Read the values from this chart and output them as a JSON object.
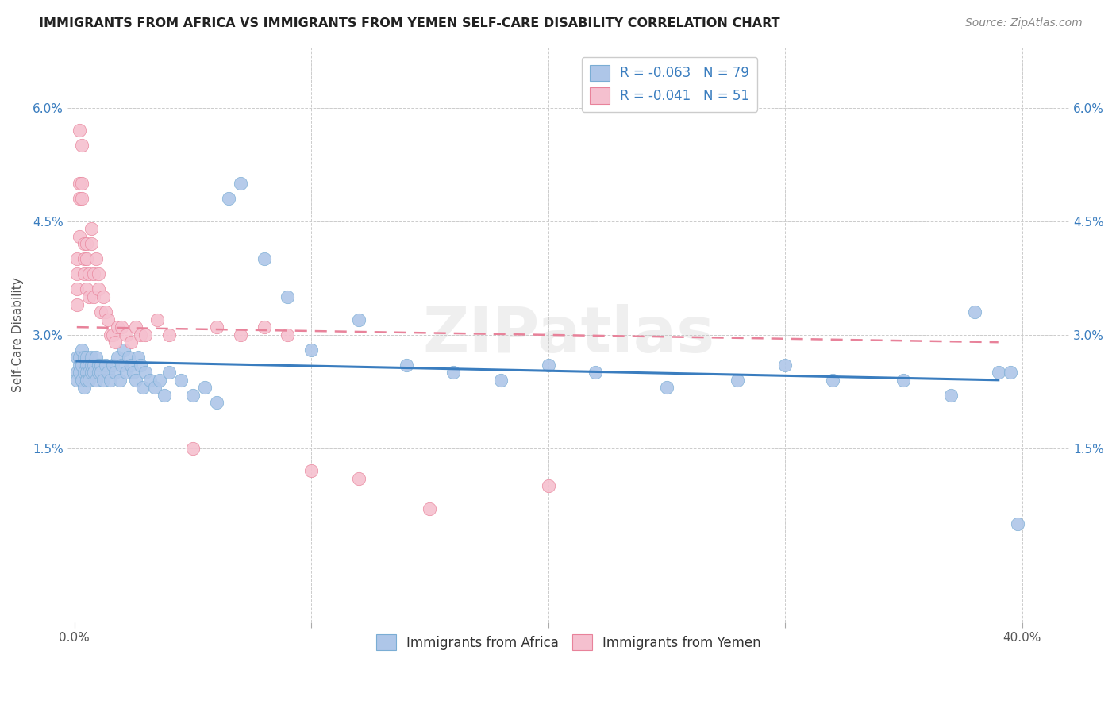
{
  "title": "IMMIGRANTS FROM AFRICA VS IMMIGRANTS FROM YEMEN SELF-CARE DISABILITY CORRELATION CHART",
  "source": "Source: ZipAtlas.com",
  "ylabel": "Self-Care Disability",
  "ytick_labels": [
    "6.0%",
    "4.5%",
    "3.0%",
    "1.5%"
  ],
  "ytick_values": [
    0.06,
    0.045,
    0.03,
    0.015
  ],
  "xtick_values": [
    0.0,
    0.1,
    0.2,
    0.3,
    0.4
  ],
  "xlim": [
    -0.003,
    0.42
  ],
  "ylim": [
    -0.008,
    0.068
  ],
  "legend_africa": "R = -0.063   N = 79",
  "legend_yemen": "R = -0.041   N = 51",
  "africa_color": "#aec6e8",
  "africa_edge_color": "#7aadd4",
  "africa_line_color": "#3a7dbf",
  "yemen_color": "#f5c0cf",
  "yemen_edge_color": "#e8829a",
  "yemen_line_color": "#e8829a",
  "background_color": "#ffffff",
  "africa_line_x": [
    0.001,
    0.39
  ],
  "africa_line_y": [
    0.0265,
    0.024
  ],
  "yemen_line_x": [
    0.001,
    0.39
  ],
  "yemen_line_y": [
    0.031,
    0.029
  ],
  "africa_scatter_x": [
    0.001,
    0.001,
    0.001,
    0.002,
    0.002,
    0.002,
    0.003,
    0.003,
    0.003,
    0.004,
    0.004,
    0.004,
    0.005,
    0.005,
    0.005,
    0.005,
    0.006,
    0.006,
    0.006,
    0.007,
    0.007,
    0.007,
    0.008,
    0.008,
    0.009,
    0.009,
    0.01,
    0.01,
    0.011,
    0.011,
    0.012,
    0.013,
    0.014,
    0.015,
    0.016,
    0.017,
    0.018,
    0.019,
    0.02,
    0.021,
    0.022,
    0.023,
    0.024,
    0.025,
    0.026,
    0.027,
    0.028,
    0.029,
    0.03,
    0.032,
    0.034,
    0.036,
    0.038,
    0.04,
    0.045,
    0.05,
    0.055,
    0.06,
    0.065,
    0.07,
    0.08,
    0.09,
    0.1,
    0.12,
    0.14,
    0.16,
    0.18,
    0.2,
    0.22,
    0.25,
    0.28,
    0.3,
    0.32,
    0.35,
    0.37,
    0.38,
    0.39,
    0.395,
    0.398
  ],
  "africa_scatter_y": [
    0.027,
    0.025,
    0.024,
    0.026,
    0.025,
    0.027,
    0.026,
    0.024,
    0.028,
    0.025,
    0.027,
    0.023,
    0.026,
    0.025,
    0.024,
    0.027,
    0.026,
    0.025,
    0.024,
    0.027,
    0.025,
    0.026,
    0.026,
    0.025,
    0.027,
    0.024,
    0.026,
    0.025,
    0.026,
    0.025,
    0.024,
    0.026,
    0.025,
    0.024,
    0.026,
    0.025,
    0.027,
    0.024,
    0.026,
    0.028,
    0.025,
    0.027,
    0.026,
    0.025,
    0.024,
    0.027,
    0.026,
    0.023,
    0.025,
    0.024,
    0.023,
    0.024,
    0.022,
    0.025,
    0.024,
    0.022,
    0.023,
    0.021,
    0.048,
    0.05,
    0.04,
    0.035,
    0.028,
    0.032,
    0.026,
    0.025,
    0.024,
    0.026,
    0.025,
    0.023,
    0.024,
    0.026,
    0.024,
    0.024,
    0.022,
    0.033,
    0.025,
    0.025,
    0.005
  ],
  "yemen_scatter_x": [
    0.001,
    0.001,
    0.001,
    0.001,
    0.002,
    0.002,
    0.002,
    0.002,
    0.003,
    0.003,
    0.003,
    0.004,
    0.004,
    0.004,
    0.005,
    0.005,
    0.005,
    0.006,
    0.006,
    0.007,
    0.007,
    0.008,
    0.008,
    0.009,
    0.01,
    0.01,
    0.011,
    0.012,
    0.013,
    0.014,
    0.015,
    0.016,
    0.017,
    0.018,
    0.02,
    0.022,
    0.024,
    0.026,
    0.028,
    0.03,
    0.035,
    0.04,
    0.05,
    0.06,
    0.07,
    0.08,
    0.09,
    0.1,
    0.12,
    0.15,
    0.2
  ],
  "yemen_scatter_y": [
    0.04,
    0.038,
    0.036,
    0.034,
    0.057,
    0.05,
    0.048,
    0.043,
    0.055,
    0.05,
    0.048,
    0.042,
    0.04,
    0.038,
    0.042,
    0.04,
    0.036,
    0.038,
    0.035,
    0.044,
    0.042,
    0.038,
    0.035,
    0.04,
    0.038,
    0.036,
    0.033,
    0.035,
    0.033,
    0.032,
    0.03,
    0.03,
    0.029,
    0.031,
    0.031,
    0.03,
    0.029,
    0.031,
    0.03,
    0.03,
    0.032,
    0.03,
    0.015,
    0.031,
    0.03,
    0.031,
    0.03,
    0.012,
    0.011,
    0.007,
    0.01
  ]
}
